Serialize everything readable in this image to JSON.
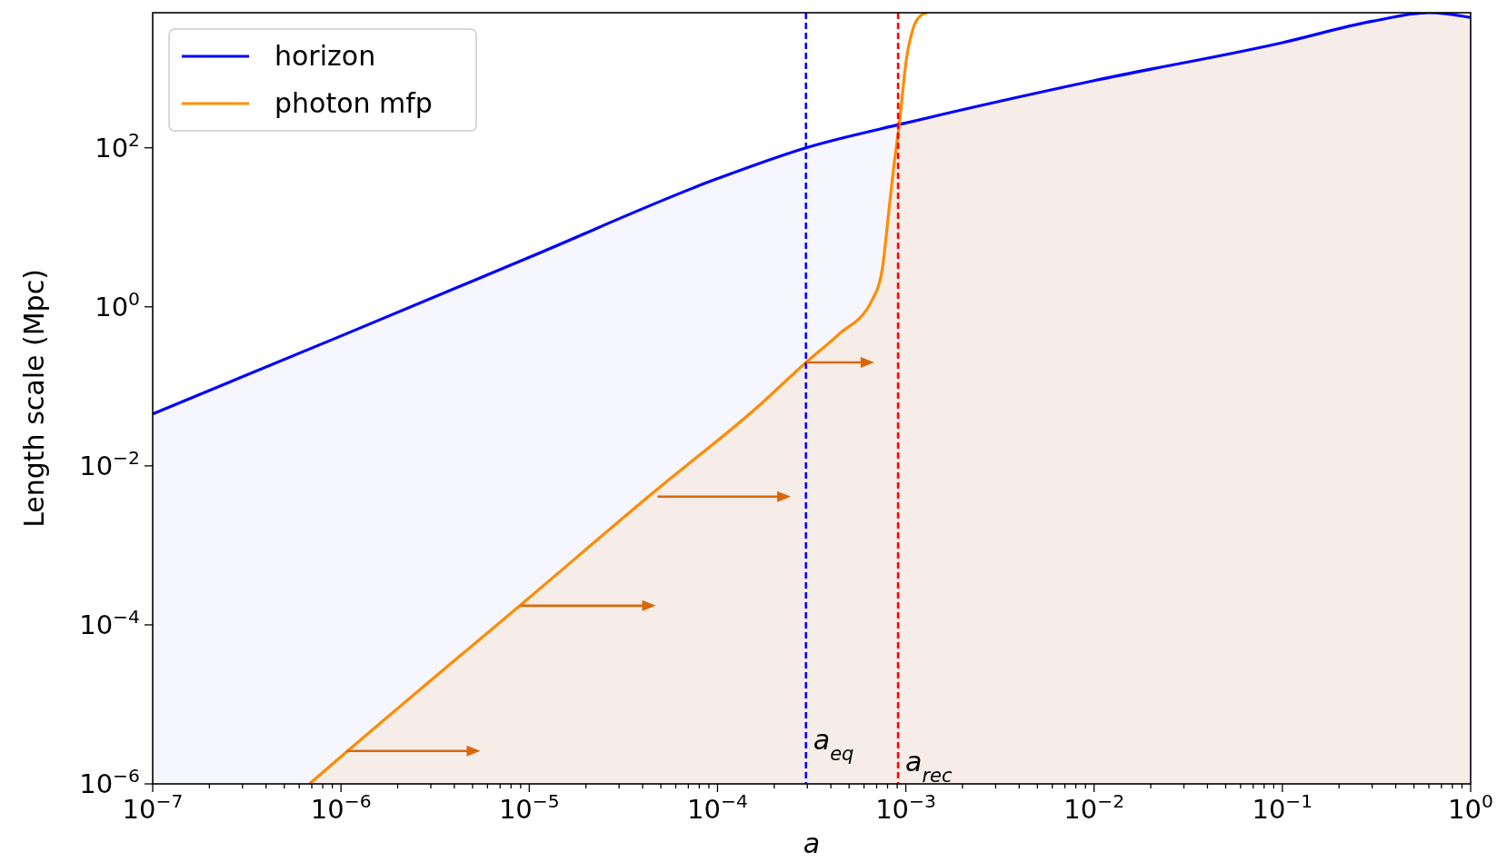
{
  "chart_data": {
    "type": "line",
    "xlabel": "a",
    "ylabel": "Length scale (Mpc)",
    "log": "xy",
    "grid": false,
    "legend": "top left",
    "xlim": [
      1e-07,
      1
    ],
    "ylim": [
      1e-06,
      5000
    ],
    "xticks": [
      {
        "value": 1e-07,
        "label": "10$^{−7}$"
      },
      {
        "value": 1e-06,
        "label": "10$^{−6}$"
      },
      {
        "value": 1e-05,
        "label": "10$^{−5}$"
      },
      {
        "value": 0.0001,
        "label": "10$^{−4}$"
      },
      {
        "value": 0.001,
        "label": "10$^{−3}$"
      },
      {
        "value": 0.01,
        "label": "10$^{−2}$"
      },
      {
        "value": 0.1,
        "label": "10$^{−1}$"
      },
      {
        "value": 1,
        "label": "10$^{0}$"
      },
      {
        "value": 2e-07,
        "label": null
      },
      {
        "value": 3e-07,
        "label": null
      },
      {
        "value": 4e-07,
        "label": null
      },
      {
        "value": 5e-07,
        "label": null
      },
      {
        "value": 6e-07,
        "label": null
      },
      {
        "value": 7e-07,
        "label": null
      },
      {
        "value": 8e-07,
        "label": null
      },
      {
        "value": 9e-07,
        "label": null
      },
      {
        "value": 2e-06,
        "label": null
      },
      {
        "value": 3e-06,
        "label": null
      },
      {
        "value": 4e-06,
        "label": null
      },
      {
        "value": 5e-06,
        "label": null
      },
      {
        "value": 6e-06,
        "label": null
      },
      {
        "value": 7e-06,
        "label": null
      },
      {
        "value": 8e-06,
        "label": null
      },
      {
        "value": 9e-06,
        "label": null
      },
      {
        "value": 2e-05,
        "label": null
      },
      {
        "value": 3e-05,
        "label": null
      },
      {
        "value": 4e-05,
        "label": null
      },
      {
        "value": 5e-05,
        "label": null
      },
      {
        "value": 6e-05,
        "label": null
      },
      {
        "value": 7e-05,
        "label": null
      },
      {
        "value": 8e-05,
        "label": null
      },
      {
        "value": 9e-05,
        "label": null
      },
      {
        "value": 0.0002,
        "label": null
      },
      {
        "value": 0.0003,
        "label": null
      },
      {
        "value": 0.0004,
        "label": null
      },
      {
        "value": 0.0005,
        "label": null
      },
      {
        "value": 0.0006,
        "label": null
      },
      {
        "value": 0.0007,
        "label": null
      },
      {
        "value": 0.0008,
        "label": null
      },
      {
        "value": 0.0009,
        "label": null
      },
      {
        "value": 0.002,
        "label": null
      },
      {
        "value": 0.003,
        "label": null
      },
      {
        "value": 0.004,
        "label": null
      },
      {
        "value": 0.005,
        "label": null
      },
      {
        "value": 0.006,
        "label": null
      },
      {
        "value": 0.007,
        "label": null
      },
      {
        "value": 0.008,
        "label": null
      },
      {
        "value": 0.009,
        "label": null
      },
      {
        "value": 0.02,
        "label": null
      },
      {
        "value": 0.03,
        "label": null
      },
      {
        "value": 0.04,
        "label": null
      },
      {
        "value": 0.05,
        "label": null
      },
      {
        "value": 0.06,
        "label": null
      },
      {
        "value": 0.07,
        "label": null
      },
      {
        "value": 0.08,
        "label": null
      },
      {
        "value": 0.09,
        "label": null
      },
      {
        "value": 0.2,
        "label": null
      },
      {
        "value": 0.3,
        "label": null
      },
      {
        "value": 0.4,
        "label": null
      },
      {
        "value": 0.5,
        "label": null
      },
      {
        "value": 0.6,
        "label": null
      },
      {
        "value": 0.7,
        "label": null
      },
      {
        "value": 0.8,
        "label": null
      },
      {
        "value": 0.9,
        "label": null
      }
    ],
    "yticks": [
      {
        "value": 1e-06,
        "label": "10$^{−6}$"
      },
      {
        "value": 0.0001,
        "label": "10$^{−4}$"
      },
      {
        "value": 0.01,
        "label": "10$^{−2}$"
      },
      {
        "value": 1,
        "label": "10$^{0}$"
      },
      {
        "value": 100,
        "label": "10$^{2}$"
      }
    ],
    "series": [
      {
        "name": "horizon",
        "type": "area",
        "color": "#0000ff",
        "x": [
          1e-07,
          1e-06,
          1e-05,
          0.0001,
          0.000295,
          0.001,
          0.01,
          0.1,
          0.3,
          0.6,
          1
        ],
        "values": [
          0.045,
          0.43,
          4.2,
          41,
          100,
          205,
          700,
          2100,
          3900,
          5000,
          4350
        ]
      },
      {
        "name": "photon mfp",
        "color": "#ff8c00",
        "x": [
          6.8e-07,
          1e-06,
          1e-05,
          4.6e-05,
          0.00017,
          0.000295,
          0.00044,
          0.00066,
          0.00075,
          0.00081,
          0.00086,
          0.00093,
          0.001,
          0.0011,
          0.0012,
          0.0013
        ],
        "values": [
          1e-06,
          2.2e-06,
          0.00022,
          0.0047,
          0.06,
          0.2,
          0.45,
          1.2,
          3,
          15,
          54,
          230,
          1150,
          3300,
          4600,
          5000
        ]
      }
    ],
    "ref_lines": [
      {
        "axis": "x",
        "value": 0.000295,
        "label": "a$_{eq}$",
        "color": "#0000ff",
        "line_style": "dashed"
      },
      {
        "axis": "x",
        "value": 0.00091,
        "label": "a$_{rec}$",
        "color": "#ff0000",
        "line_style": "dashed"
      }
    ]
  }
}
